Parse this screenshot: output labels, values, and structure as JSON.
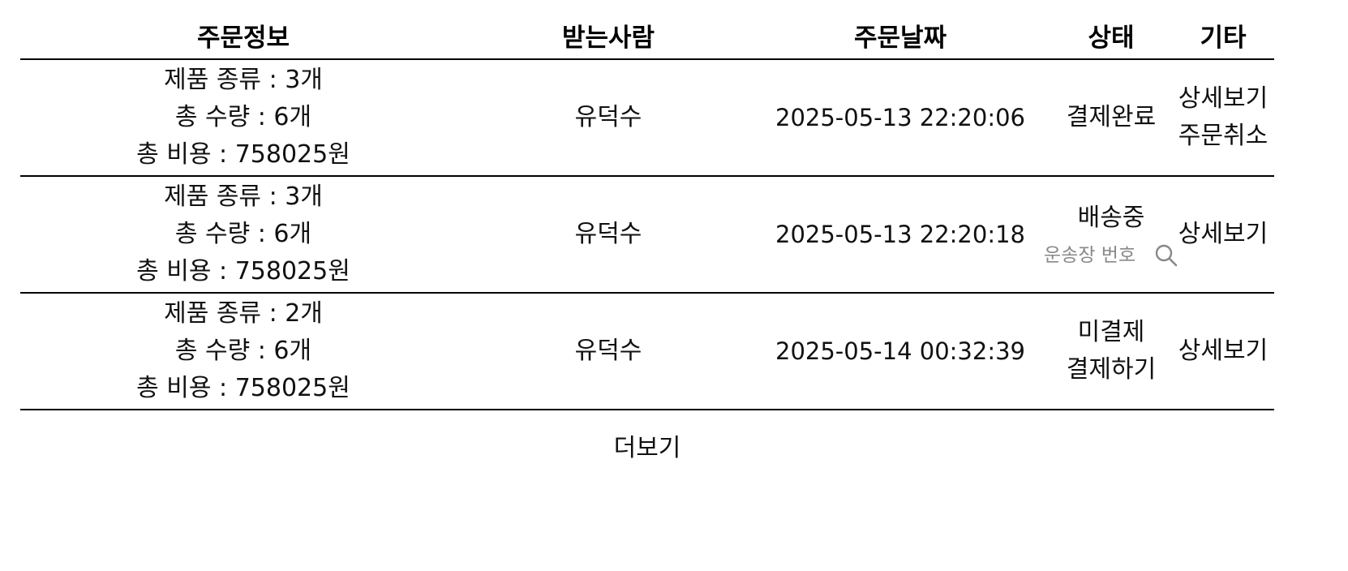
{
  "table": {
    "headers": {
      "order_info": "주문정보",
      "recipient": "받는사람",
      "order_date": "주문날짜",
      "status": "상태",
      "etc": "기타"
    },
    "rows": [
      {
        "info": {
          "kinds": "제품 종류 : 3개",
          "quantity": "총 수량 : 6개",
          "cost": "총 비용 : 758025원"
        },
        "recipient": "유덕수",
        "date": "2025-05-13 22:20:06",
        "status": "결제완료",
        "actions": [
          "상세보기",
          "주문취소"
        ]
      },
      {
        "info": {
          "kinds": "제품 종류 : 3개",
          "quantity": "총 수량 : 6개",
          "cost": "총 비용 : 758025원"
        },
        "recipient": "유덕수",
        "date": "2025-05-13 22:20:18",
        "status": "배송중",
        "tracking_placeholder": "운송장 번호",
        "actions": [
          "상세보기"
        ]
      },
      {
        "info": {
          "kinds": "제품 종류 : 2개",
          "quantity": "총 수량 : 6개",
          "cost": "총 비용 : 758025원"
        },
        "recipient": "유덕수",
        "date": "2025-05-14 00:32:39",
        "status": "미결제",
        "status_action": "결제하기",
        "actions": [
          "상세보기"
        ]
      }
    ]
  },
  "load_more": "더보기",
  "icons": {
    "search": "search-icon"
  },
  "colors": {
    "text": "#111111",
    "muted": "#888888",
    "border": "#000000"
  }
}
